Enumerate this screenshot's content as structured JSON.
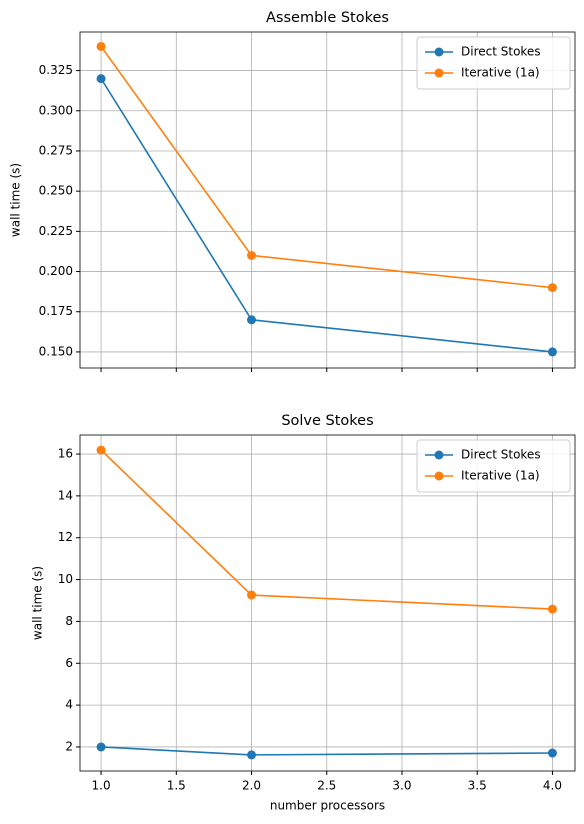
{
  "chart_data": [
    {
      "type": "line",
      "title": "Assemble Stokes",
      "ylabel": "wall time (s)",
      "x": [
        1,
        2,
        4
      ],
      "series": [
        {
          "name": "Direct Stokes",
          "color": "#1f77b4",
          "values": [
            0.32,
            0.17,
            0.15
          ]
        },
        {
          "name": "Iterative (1a)",
          "color": "#ff7f0e",
          "values": [
            0.34,
            0.21,
            0.19
          ]
        }
      ],
      "xlim": [
        0.86,
        4.15
      ],
      "ylim": [
        0.14,
        0.349
      ],
      "xticks": [
        1,
        1.5,
        2,
        2.5,
        3,
        3.5,
        4
      ],
      "yticks": [
        {
          "value": 0.15,
          "label": "0.150"
        },
        0.175,
        {
          "value": 0.2,
          "label": "0.200"
        },
        0.225,
        {
          "value": 0.25,
          "label": "0.250"
        },
        0.275,
        {
          "value": 0.3,
          "label": "0.300"
        },
        0.325
      ],
      "grid": true,
      "legend": "upper right"
    },
    {
      "type": "line",
      "title": "Solve Stokes",
      "xlabel": "number processors",
      "ylabel": "wall time (s)",
      "x": [
        1,
        2,
        4
      ],
      "series": [
        {
          "name": "Direct Stokes",
          "color": "#1f77b4",
          "values": [
            2.0,
            1.62,
            1.71
          ]
        },
        {
          "name": "Iterative (1a)",
          "color": "#ff7f0e",
          "values": [
            16.19,
            9.26,
            8.59
          ]
        }
      ],
      "xlim": [
        0.86,
        4.15
      ],
      "ylim": [
        0.85,
        16.91
      ],
      "xticks": [
        {
          "value": 1,
          "label": "1.0"
        },
        1.5,
        {
          "value": 2,
          "label": "2.0"
        },
        2.5,
        {
          "value": 3,
          "label": "3.0"
        },
        3.5,
        {
          "value": 4,
          "label": "4.0"
        }
      ],
      "yticks": [
        2,
        4,
        6,
        8,
        10,
        12,
        14,
        16
      ],
      "grid": true,
      "legend": "upper right"
    }
  ]
}
